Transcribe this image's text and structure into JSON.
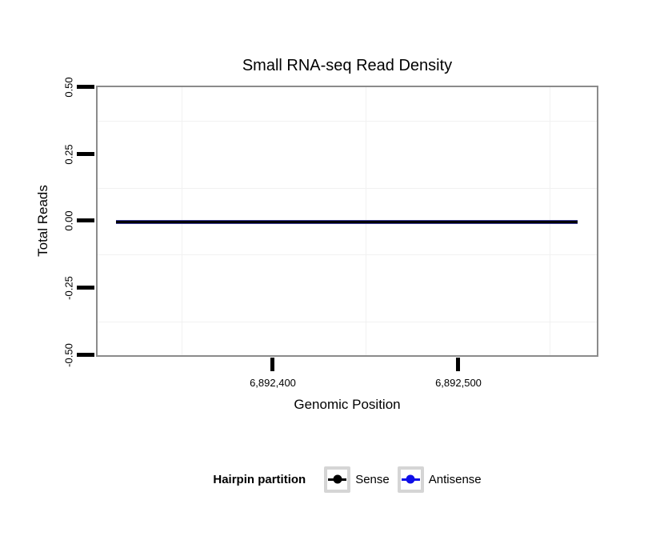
{
  "chart_data": {
    "type": "line",
    "title": "Small RNA-seq Read Density",
    "xlabel": "Genomic Position",
    "ylabel": "Total Reads",
    "ylim": [
      -0.5,
      0.5
    ],
    "yticks": [
      0.5,
      0.25,
      0.0,
      -0.25,
      -0.5
    ],
    "ytick_labels": [
      "0.50",
      "0.25",
      "0.00",
      "-0.25",
      "-0.50"
    ],
    "xticks": [
      6892400,
      6892500
    ],
    "xtick_labels": [
      "6,892,400",
      "6,892,500"
    ],
    "x_range_approx": [
      6892315,
      6892565
    ],
    "grid": "minor gridlines only, very light gray, major gridlines white/invisible",
    "legend": {
      "position": "bottom",
      "title": "Hairpin partition",
      "entries": [
        {
          "name": "Sense",
          "color": "#000000"
        },
        {
          "name": "Antisense",
          "color": "#0f0fe8"
        }
      ]
    },
    "series": [
      {
        "name": "Sense",
        "color": "#000000",
        "x": [
          6892315,
          6892565
        ],
        "y": [
          0,
          0
        ]
      },
      {
        "name": "Antisense",
        "color": "#0f0fe8",
        "x": [
          6892315,
          6892565
        ],
        "y": [
          0,
          0
        ]
      }
    ],
    "note": "Both series are constant at 0 across the plotted region and overlap as a single flat dark line at y = 0"
  },
  "colors": {
    "panel_border": "#8b8b8b",
    "minor_grid": "#f1f1f1",
    "tick_marks": "#000000",
    "legend_key_border": "#d5d5d5"
  }
}
